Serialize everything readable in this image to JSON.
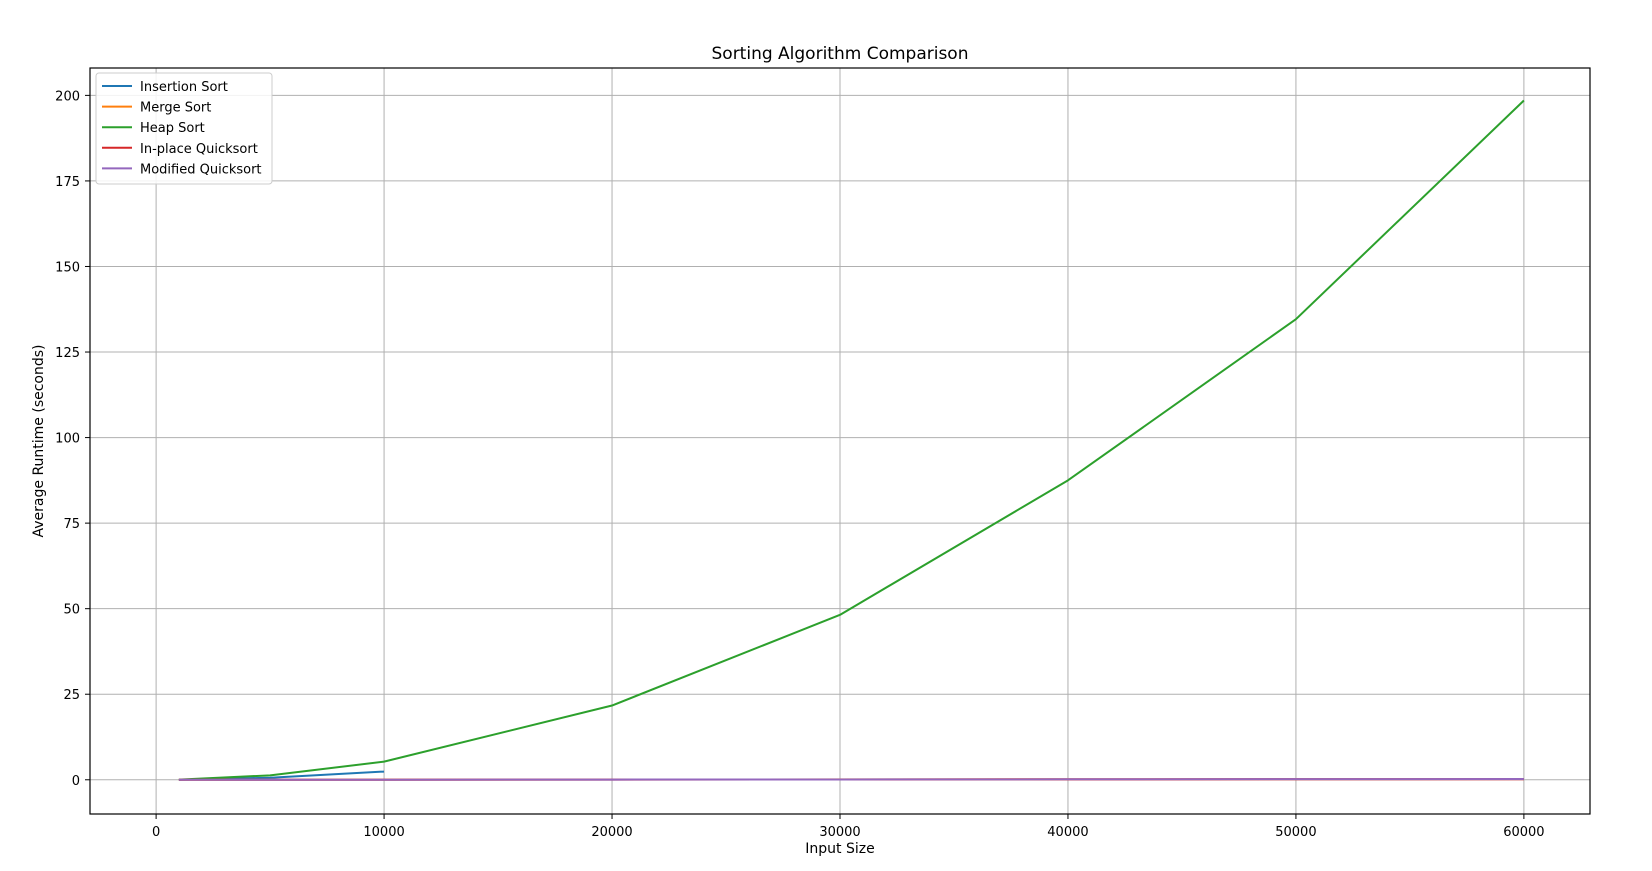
{
  "chart_data": {
    "type": "line",
    "title": "Sorting Algorithm Comparison",
    "xlabel": "Input Size",
    "ylabel": "Average Runtime (seconds)",
    "xlim": [
      -2900,
      62900
    ],
    "ylim": [
      -10,
      208
    ],
    "xticks": [
      0,
      10000,
      20000,
      30000,
      40000,
      50000,
      60000
    ],
    "yticks": [
      0,
      25,
      50,
      75,
      100,
      125,
      150,
      175,
      200
    ],
    "grid": true,
    "legend_position": "top-left",
    "series": [
      {
        "name": "Insertion Sort",
        "color": "#1f77b4",
        "x": [
          1000,
          5000,
          10000
        ],
        "y": [
          0.02,
          0.6,
          2.4
        ]
      },
      {
        "name": "Merge Sort",
        "color": "#ff7f0e",
        "x": [
          1000,
          5000,
          10000,
          20000,
          30000,
          40000,
          50000,
          60000
        ],
        "y": [
          0.003,
          0.015,
          0.03,
          0.07,
          0.11,
          0.15,
          0.19,
          0.23
        ]
      },
      {
        "name": "Heap Sort",
        "color": "#2ca02c",
        "x": [
          1000,
          5000,
          10000,
          20000,
          30000,
          40000,
          50000,
          60000
        ],
        "y": [
          0.05,
          1.3,
          5.3,
          21.7,
          48.2,
          87.5,
          134.6,
          198.5
        ]
      },
      {
        "name": "In-place Quicksort",
        "color": "#d62728",
        "x": [
          1000,
          5000,
          10000,
          20000,
          30000,
          40000,
          50000,
          60000
        ],
        "y": [
          0.002,
          0.01,
          0.02,
          0.05,
          0.08,
          0.11,
          0.14,
          0.17
        ]
      },
      {
        "name": "Modified Quicksort",
        "color": "#9467bd",
        "x": [
          1000,
          5000,
          10000,
          20000,
          30000,
          40000,
          50000,
          60000
        ],
        "y": [
          0.002,
          0.012,
          0.025,
          0.06,
          0.1,
          0.14,
          0.18,
          0.22
        ]
      }
    ]
  }
}
